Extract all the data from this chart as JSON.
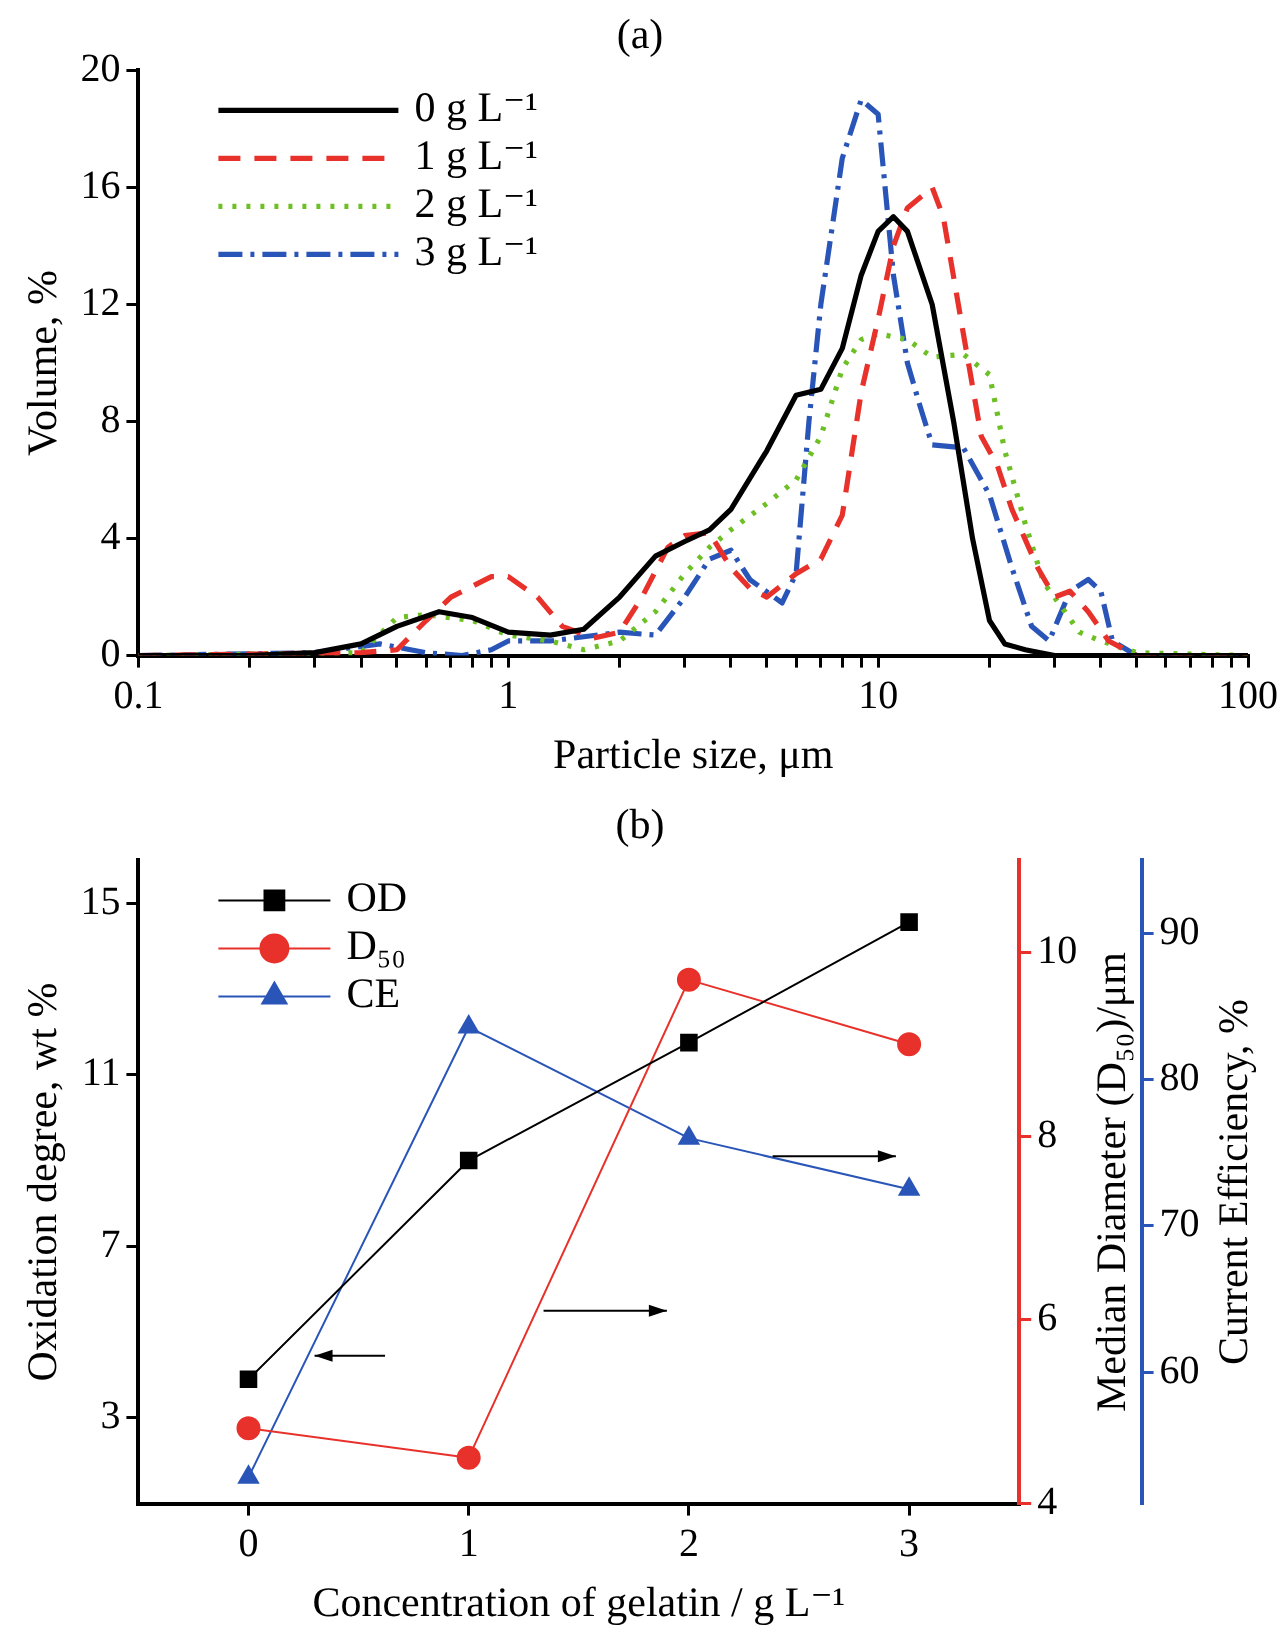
{
  "chart_data": [
    {
      "type": "line",
      "title": "(a)",
      "xlabel": "Particle size, μm",
      "ylabel": "Volume, %",
      "log": "x",
      "grid": false,
      "legend": "top left",
      "marker": "none",
      "xlim": [
        0.1,
        100
      ],
      "xticks": [
        0.1,
        {
          "value": 0.2,
          "label": null
        },
        {
          "value": 0.3,
          "label": null
        },
        {
          "value": 0.4,
          "label": null
        },
        {
          "value": 0.5,
          "label": null
        },
        {
          "value": 0.6,
          "label": null
        },
        {
          "value": 0.7,
          "label": null
        },
        {
          "value": 0.8,
          "label": null
        },
        {
          "value": 0.9,
          "label": null
        },
        1,
        {
          "value": 2,
          "label": null
        },
        {
          "value": 3,
          "label": null
        },
        {
          "value": 4,
          "label": null
        },
        {
          "value": 5,
          "label": null
        },
        {
          "value": 6,
          "label": null
        },
        {
          "value": 7,
          "label": null
        },
        {
          "value": 8,
          "label": null
        },
        {
          "value": 9,
          "label": null
        },
        10,
        {
          "value": 20,
          "label": null
        },
        {
          "value": 30,
          "label": null
        },
        {
          "value": 40,
          "label": null
        },
        {
          "value": 50,
          "label": null
        },
        {
          "value": 60,
          "label": null
        },
        {
          "value": 70,
          "label": null
        },
        {
          "value": 80,
          "label": null
        },
        {
          "value": 90,
          "label": null
        },
        100
      ],
      "ylim": [
        0,
        20
      ],
      "yticks": [
        0,
        4,
        8,
        12,
        16,
        20
      ],
      "series": [
        {
          "name": "0 g L⁻¹",
          "color": "#000000",
          "line_style": "solid",
          "x": [
            0.1,
            0.2,
            0.3,
            0.4,
            0.5,
            0.65,
            0.8,
            1,
            1.3,
            1.6,
            2,
            2.5,
            3,
            3.5,
            4,
            5,
            6,
            7,
            8,
            9,
            10,
            11,
            12,
            14,
            16,
            18,
            20,
            22,
            25,
            30,
            100
          ],
          "values": [
            0,
            0,
            0.1,
            0.4,
            1,
            1.5,
            1.3,
            0.8,
            0.7,
            0.9,
            2,
            3.4,
            3.9,
            4.3,
            5,
            7,
            8.9,
            9.1,
            10.5,
            13,
            14.5,
            15,
            14.5,
            12,
            8,
            4,
            1.2,
            0.4,
            0.2,
            0,
            0
          ]
        },
        {
          "name": "1 g L⁻¹",
          "color": "#e8312a",
          "line_style": "dashed",
          "x": [
            0.1,
            0.4,
            0.5,
            0.6,
            0.7,
            0.9,
            1,
            1.2,
            1.4,
            1.7,
            2,
            2.3,
            2.7,
            3,
            3.5,
            4,
            4.5,
            5,
            6,
            7,
            8,
            9,
            10,
            11,
            12,
            14,
            15,
            17,
            19,
            21,
            23,
            27,
            30,
            33,
            37,
            42,
            50,
            100
          ],
          "values": [
            0,
            0.1,
            0.2,
            1.2,
            2,
            2.7,
            2.7,
            2,
            1,
            0.6,
            0.8,
            2,
            3.7,
            4.1,
            4.2,
            3,
            2.3,
            2,
            2.8,
            3.3,
            4.8,
            9,
            11.5,
            14,
            15.3,
            16,
            15,
            11,
            7.5,
            6.5,
            5,
            3,
            2,
            2.2,
            1.5,
            0.5,
            0,
            0
          ]
        },
        {
          "name": "2 g L⁻¹",
          "color": "#6cc024",
          "line_style": "dotted",
          "x": [
            0.1,
            0.4,
            0.5,
            0.6,
            0.8,
            1,
            1.3,
            1.6,
            2,
            2.5,
            3,
            3.5,
            4,
            5,
            6,
            7,
            8,
            9,
            10,
            12,
            14,
            17,
            20,
            22,
            25,
            28,
            32,
            35,
            40,
            50,
            100
          ],
          "values": [
            0,
            0.1,
            1.3,
            1.4,
            1.2,
            0.7,
            0.5,
            0.2,
            0.5,
            1.5,
            2.8,
            3.7,
            4.3,
            5.2,
            6,
            7.5,
            9.8,
            10.8,
            11,
            10.8,
            10.2,
            10.3,
            9.6,
            7,
            4.5,
            2.5,
            1.5,
            0.8,
            0.5,
            0.1,
            0
          ]
        },
        {
          "name": "3 g L⁻¹",
          "color": "#2a55b8",
          "line_style": "dashdot",
          "x": [
            0.1,
            0.3,
            0.45,
            0.6,
            0.75,
            0.9,
            1,
            1.3,
            2,
            2.5,
            3,
            3.5,
            4,
            4.5,
            5.5,
            6,
            6.5,
            7,
            8,
            9,
            10,
            11,
            12,
            13,
            14,
            17,
            20,
            23,
            26,
            29,
            33,
            37,
            40,
            43,
            50,
            100
          ],
          "values": [
            0,
            0.1,
            0.4,
            0.1,
            0,
            0.2,
            0.5,
            0.5,
            0.8,
            0.7,
            2,
            3.3,
            3.6,
            2.6,
            1.8,
            2.8,
            8,
            12,
            17,
            19,
            18.5,
            13,
            10,
            8.5,
            7.2,
            7.1,
            5.5,
            3,
            1,
            0.5,
            2.2,
            2.6,
            2.2,
            0.5,
            0,
            0
          ]
        }
      ]
    },
    {
      "type": "line",
      "title": "(b)",
      "xlabel": "Concentration of gelatin / g L⁻¹",
      "ylabel": "Oxidation degree, wt %",
      "y2label": "Median Diameter (D₅₀)/μm",
      "y3label": "Current Efficiency, %",
      "grid": false,
      "legend": "top left",
      "x": [
        0,
        1,
        2,
        3
      ],
      "xlim": [
        -0.5,
        3.5
      ],
      "xticks": [
        0,
        1,
        2,
        3
      ],
      "ylim": [
        1,
        16
      ],
      "yticks": [
        3,
        7,
        11,
        15
      ],
      "y2lim": [
        4,
        11
      ],
      "y2ticks": [
        4,
        6,
        8,
        10
      ],
      "y3lim": [
        51,
        95
      ],
      "y3ticks": [
        60,
        70,
        80,
        90
      ],
      "series": [
        {
          "name": "OD",
          "color": "#000000",
          "marker": "square",
          "values": [
            3.9,
            9.0,
            11.75,
            14.56
          ]
        },
        {
          "name": "D₅₀",
          "color": "#e8312a",
          "marker": "circle",
          "axis": "y2",
          "values": [
            4.82,
            4.5,
            9.7,
            9.0
          ]
        },
        {
          "name": "CE",
          "color": "#2a55b8",
          "marker": "triangle",
          "axis": "y3",
          "values": [
            52.8,
            83.6,
            76,
            72.5
          ]
        }
      ]
    }
  ]
}
